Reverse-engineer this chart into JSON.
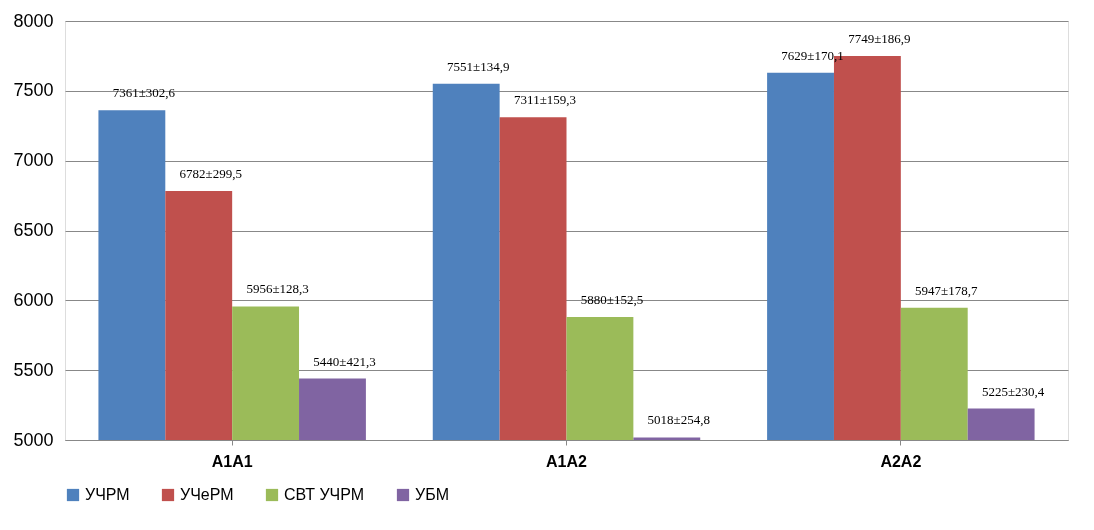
{
  "chart_data": {
    "type": "bar",
    "categories": [
      "A1A1",
      "A1A2",
      "A2A2"
    ],
    "series": [
      {
        "name": "УЧРМ",
        "color": "#4f81bd",
        "values": [
          7361,
          7551,
          7629
        ],
        "value_labels": [
          "7361±302,6",
          "7551±134,9",
          "7629±170,1"
        ]
      },
      {
        "name": "УЧеРМ",
        "color": "#c0504d",
        "values": [
          6782,
          7311,
          7749
        ],
        "value_labels": [
          "6782±299,5",
          "7311±159,3",
          "7749±186,9"
        ]
      },
      {
        "name": "СВТ УЧРМ",
        "color": "#9bbb59",
        "values": [
          5956,
          5880,
          5947
        ],
        "value_labels": [
          "5956±128,3",
          "5880±152,5",
          "5947±178,7"
        ]
      },
      {
        "name": "УБМ",
        "color": "#8064a2",
        "values": [
          5440,
          5018,
          5225
        ],
        "value_labels": [
          "5440±421,3",
          "5018±254,8",
          "5225±230,4"
        ]
      }
    ],
    "ylim": [
      5000,
      8000
    ],
    "yticks": [
      5000,
      5500,
      6000,
      6500,
      7000,
      7500,
      8000
    ],
    "grid": "y",
    "legend": "bottom"
  }
}
